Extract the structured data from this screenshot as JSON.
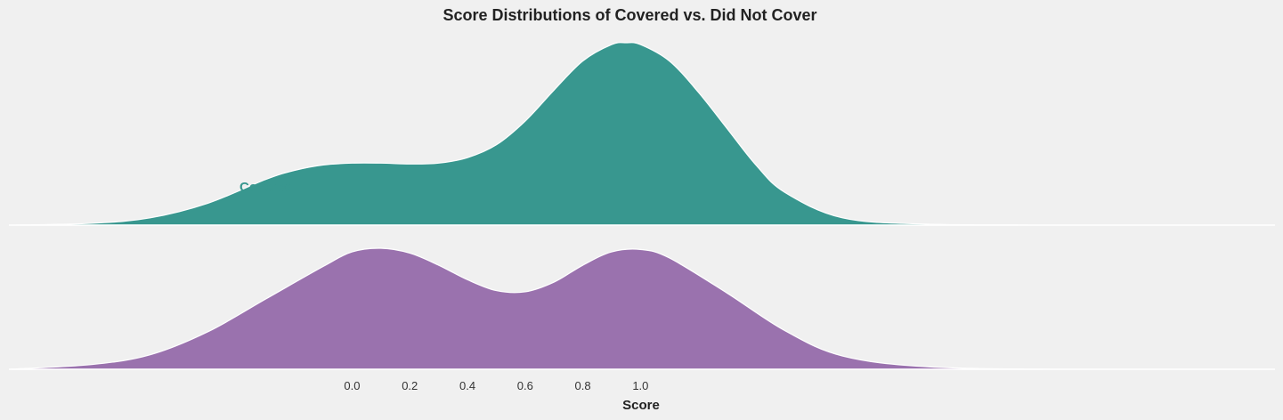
{
  "chart_data": {
    "type": "area",
    "subtype": "ridgeline-density",
    "title": "Score Distributions of Covered vs. Did Not Cover",
    "xlabel": "Score",
    "ylabel": "",
    "x_ticks": [
      "0.0",
      "0.2",
      "0.4",
      "0.6",
      "0.8",
      "1.0"
    ],
    "x_tick_values": [
      0.0,
      0.2,
      0.4,
      0.6,
      0.8,
      1.0
    ],
    "xlim": [
      -1.19,
      3.2
    ],
    "grid": false,
    "legend": "none",
    "series": [
      {
        "name": "Covered",
        "label": "Covered",
        "color": "#38978f",
        "x": [
          -1.19,
          -0.9,
          -0.7,
          -0.5,
          -0.3,
          -0.2,
          -0.1,
          0.0,
          0.1,
          0.2,
          0.3,
          0.4,
          0.5,
          0.6,
          0.7,
          0.8,
          0.9,
          0.95,
          1.0,
          1.1,
          1.2,
          1.3,
          1.4,
          1.5,
          1.7,
          2.0,
          2.5,
          3.2
        ],
        "density": [
          0.0,
          0.01,
          0.04,
          0.12,
          0.25,
          0.3,
          0.33,
          0.34,
          0.34,
          0.335,
          0.34,
          0.37,
          0.44,
          0.57,
          0.74,
          0.9,
          0.99,
          1.0,
          0.99,
          0.9,
          0.73,
          0.53,
          0.33,
          0.18,
          0.04,
          0.005,
          0.0,
          0.0
        ]
      },
      {
        "name": "Did Not Cover",
        "label": "",
        "color": "#9a72ae",
        "x": [
          -1.19,
          -0.9,
          -0.7,
          -0.5,
          -0.3,
          -0.1,
          0.0,
          0.1,
          0.2,
          0.3,
          0.4,
          0.5,
          0.6,
          0.7,
          0.8,
          0.9,
          1.0,
          1.1,
          1.3,
          1.5,
          1.7,
          2.0,
          2.5,
          3.2
        ],
        "density": [
          0.0,
          0.04,
          0.12,
          0.31,
          0.58,
          0.85,
          0.97,
          1.0,
          0.96,
          0.86,
          0.74,
          0.65,
          0.64,
          0.72,
          0.86,
          0.97,
          0.99,
          0.92,
          0.63,
          0.32,
          0.11,
          0.02,
          0.0,
          0.0
        ]
      }
    ]
  }
}
